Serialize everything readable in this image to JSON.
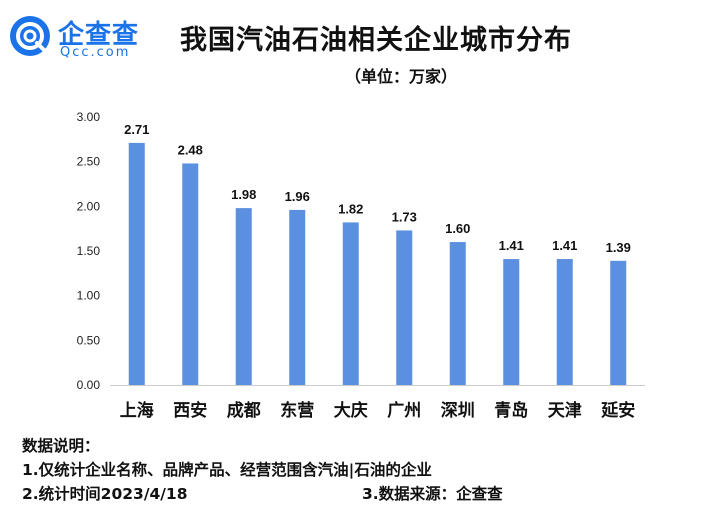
{
  "logo": {
    "text_cn": "企查查",
    "text_en": "Qcc.com"
  },
  "notes": {
    "heading": "数据说明：",
    "line1": "1.仅统计企业名称、品牌产品、经营范围含汽油|石油的企业",
    "line2": "2.统计时间2023/4/18",
    "line3": "3.数据来源：企查查"
  },
  "colors": {
    "bar": "#5B8FE0",
    "brand": "#1a73e8",
    "axis": "#cccccc"
  },
  "chart_data": {
    "type": "bar",
    "title": "我国汽油石油相关企业城市分布",
    "subtitle": "（单位：万家）",
    "categories": [
      "上海",
      "西安",
      "成都",
      "东营",
      "大庆",
      "广州",
      "深圳",
      "青岛",
      "天津",
      "延安"
    ],
    "values": [
      2.71,
      2.48,
      1.98,
      1.96,
      1.82,
      1.73,
      1.6,
      1.41,
      1.41,
      1.39
    ],
    "value_labels": [
      "2.71",
      "2.48",
      "1.98",
      "1.96",
      "1.82",
      "1.73",
      "1.60",
      "1.41",
      "1.41",
      "1.39"
    ],
    "yticks": [
      "0.00",
      "0.50",
      "1.00",
      "1.50",
      "2.00",
      "2.50",
      "3.00"
    ],
    "ylim": [
      0,
      3
    ],
    "xlabel": "",
    "ylabel": "",
    "grid": false
  }
}
